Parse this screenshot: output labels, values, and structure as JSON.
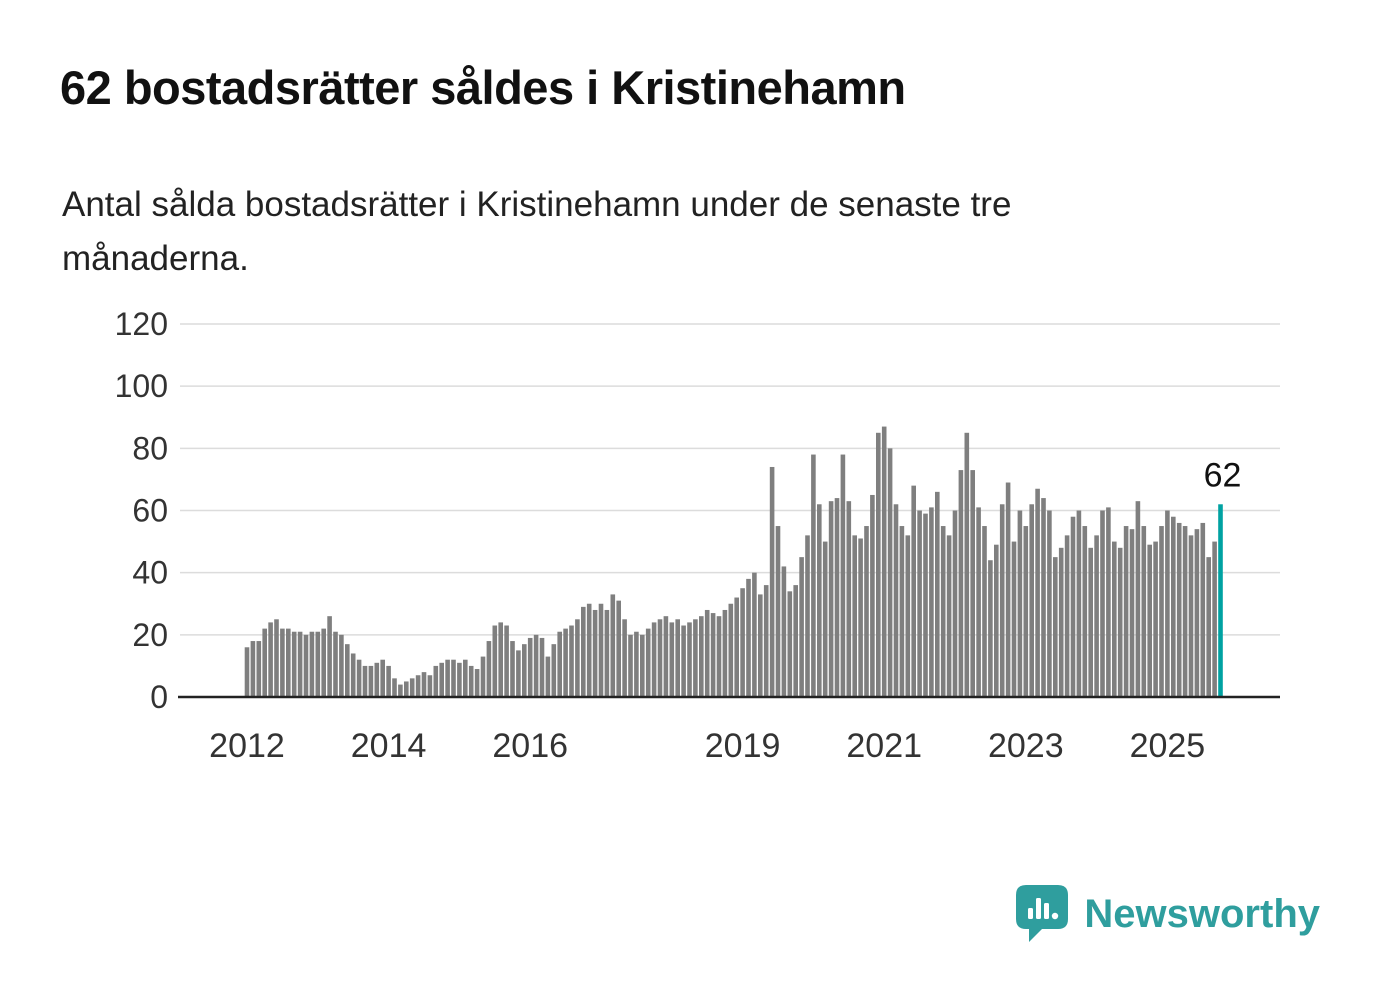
{
  "header": {
    "title": "62 bostadsrätter såldes i Kristinehamn",
    "subtitle": "Antal sålda bostadsrätter i Kristinehamn under de senaste tre månaderna."
  },
  "chart_data": {
    "type": "bar",
    "title": "62 bostadsrätter såldes i Kristinehamn",
    "subtitle": "Antal sålda bostadsrätter i Kristinehamn under de senaste tre månaderna.",
    "x_granularity": "month",
    "x_range": [
      "2012-01",
      "2025-10"
    ],
    "ylim": [
      0,
      120
    ],
    "yticks": [
      0,
      20,
      40,
      60,
      80,
      100,
      120
    ],
    "xticks": [
      {
        "label": "2012",
        "month_index": 0
      },
      {
        "label": "2014",
        "month_index": 24
      },
      {
        "label": "2016",
        "month_index": 48
      },
      {
        "label": "2019",
        "month_index": 84
      },
      {
        "label": "2021",
        "month_index": 108
      },
      {
        "label": "2023",
        "month_index": 132
      },
      {
        "label": "2025",
        "month_index": 156
      }
    ],
    "grid": true,
    "legend": "none",
    "bar_color": "#7f7f7f",
    "highlight_color": "#00a2a2",
    "annotation": {
      "text": "62",
      "target": "last-bar"
    },
    "values": [
      16,
      18,
      18,
      22,
      24,
      25,
      22,
      22,
      21,
      21,
      20,
      21,
      21,
      22,
      26,
      21,
      20,
      17,
      14,
      12,
      10,
      10,
      11,
      12,
      10,
      6,
      4,
      5,
      6,
      7,
      8,
      7,
      10,
      11,
      12,
      12,
      11,
      12,
      10,
      9,
      13,
      18,
      23,
      24,
      23,
      18,
      15,
      17,
      19,
      20,
      19,
      13,
      17,
      21,
      22,
      23,
      25,
      29,
      30,
      28,
      30,
      28,
      33,
      31,
      25,
      20,
      21,
      20,
      22,
      24,
      25,
      26,
      24,
      25,
      23,
      24,
      25,
      26,
      28,
      27,
      26,
      28,
      30,
      32,
      35,
      38,
      40,
      33,
      36,
      74,
      55,
      42,
      34,
      36,
      45,
      52,
      78,
      62,
      50,
      63,
      64,
      78,
      63,
      52,
      51,
      55,
      65,
      85,
      87,
      80,
      62,
      55,
      52,
      68,
      60,
      59,
      61,
      66,
      55,
      52,
      60,
      73,
      85,
      73,
      61,
      55,
      44,
      49,
      62,
      69,
      50,
      60,
      55,
      62,
      67,
      64,
      60,
      45,
      48,
      52,
      58,
      60,
      55,
      48,
      52,
      60,
      61,
      50,
      48,
      55,
      54,
      63,
      55,
      49,
      50,
      55,
      60,
      58,
      56,
      55,
      52,
      54,
      56,
      45,
      50,
      62
    ]
  },
  "branding": {
    "name": "Newsworthy",
    "color": "#2f9e9e"
  }
}
